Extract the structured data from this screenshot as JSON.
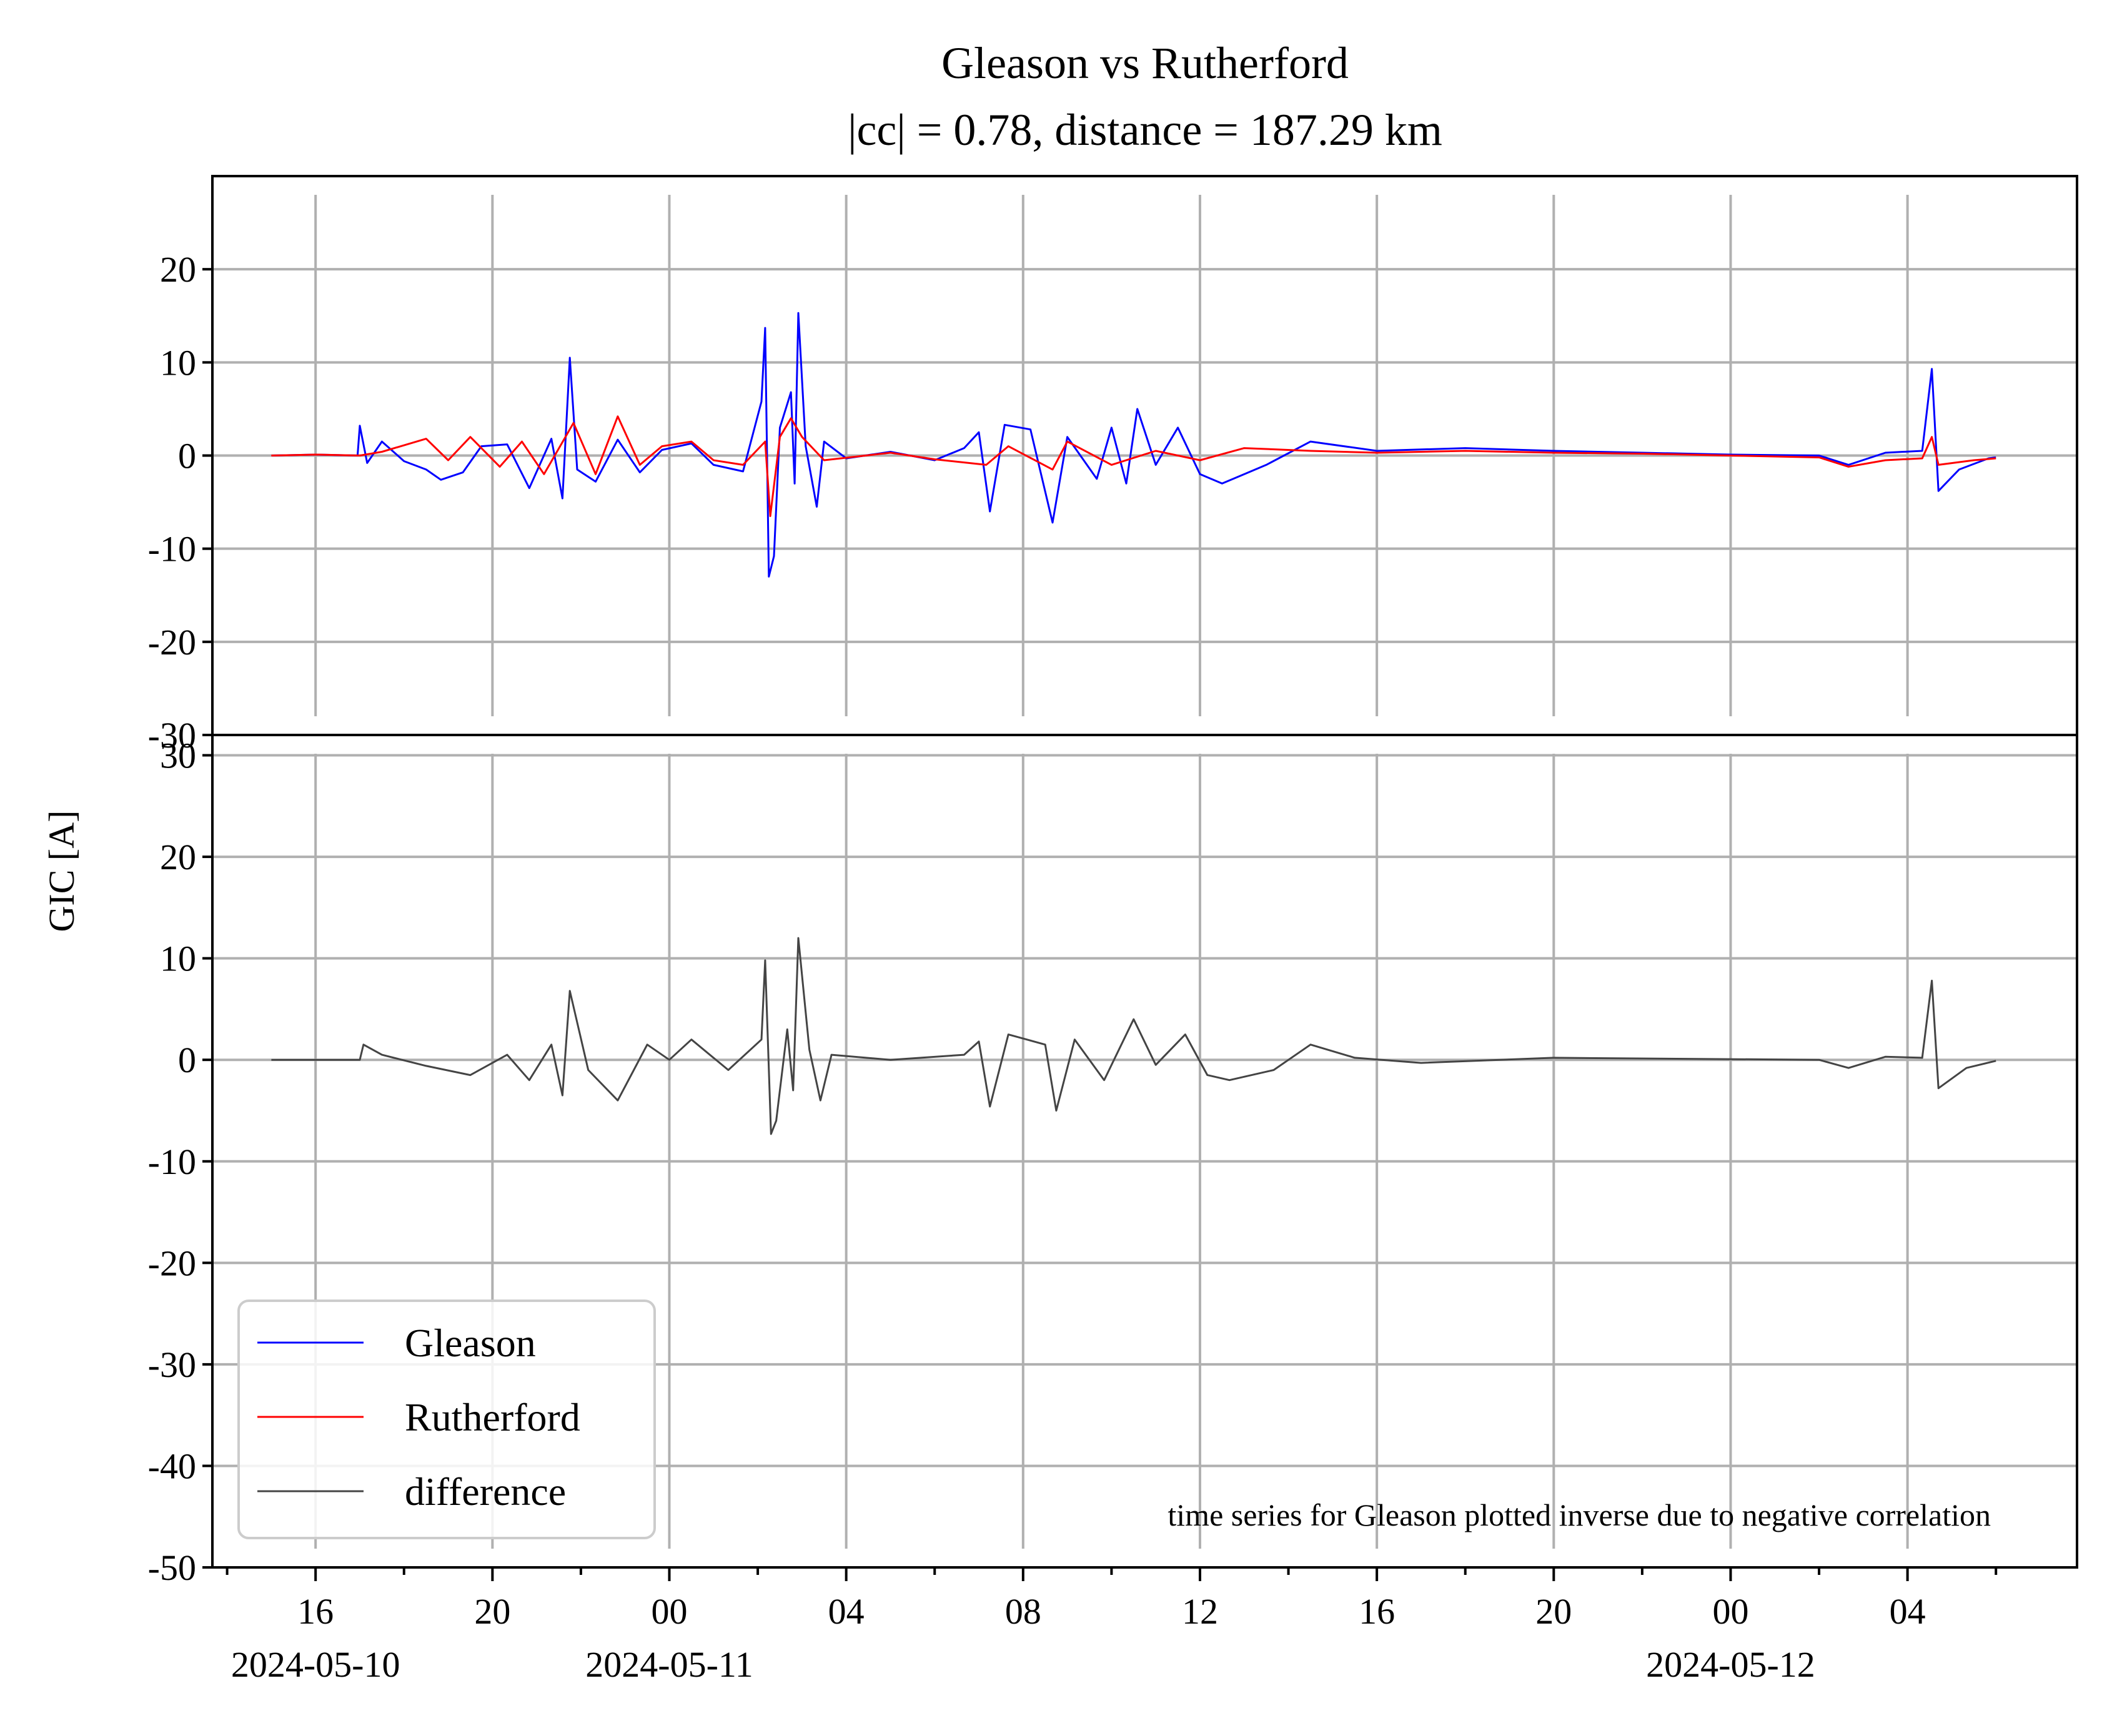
{
  "chart_data": {
    "type": "line",
    "title": "Gleason vs Rutherford",
    "subtitle": "|cc| = 0.78, distance = 187.29 km",
    "ylabel": "GIC [A]",
    "annotation": "time series for Gleason plotted inverse due to negative correlation",
    "x_start": "2024-05-10 13:40",
    "x_end": "2024-05-12 07:50",
    "x_tick_labels": [
      "16",
      "20",
      "00",
      "04",
      "08",
      "12",
      "16",
      "20",
      "00",
      "04"
    ],
    "x_date_labels": [
      "2024-05-10",
      "2024-05-11",
      "2024-05-12"
    ],
    "top_panel": {
      "ylim": [
        -30,
        30
      ],
      "y_tick_labels": [
        "-30",
        "-20",
        "-10",
        "0",
        "10",
        "20"
      ],
      "series": [
        {
          "name": "Gleason",
          "color": "#0000ff",
          "points": [
            [
              "2024-05-10 15:00",
              0.0
            ],
            [
              "2024-05-10 16:00",
              0.1
            ],
            [
              "2024-05-10 16:57",
              0.0
            ],
            [
              "2024-05-10 17:00",
              3.2
            ],
            [
              "2024-05-10 17:10",
              -0.8
            ],
            [
              "2024-05-10 17:30",
              1.5
            ],
            [
              "2024-05-10 18:00",
              -0.6
            ],
            [
              "2024-05-10 18:30",
              -1.5
            ],
            [
              "2024-05-10 18:50",
              -2.6
            ],
            [
              "2024-05-10 19:20",
              -1.8
            ],
            [
              "2024-05-10 19:45",
              1.0
            ],
            [
              "2024-05-10 20:20",
              1.2
            ],
            [
              "2024-05-10 20:50",
              -3.5
            ],
            [
              "2024-05-10 21:20",
              1.8
            ],
            [
              "2024-05-10 21:35",
              -4.6
            ],
            [
              "2024-05-10 21:45",
              10.5
            ],
            [
              "2024-05-10 21:55",
              -1.5
            ],
            [
              "2024-05-10 22:20",
              -2.8
            ],
            [
              "2024-05-10 22:50",
              1.7
            ],
            [
              "2024-05-10 23:20",
              -1.8
            ],
            [
              "2024-05-10 23:50",
              0.6
            ],
            [
              "2024-05-11 00:30",
              1.3
            ],
            [
              "2024-05-11 01:00",
              -1.0
            ],
            [
              "2024-05-11 01:40",
              -1.7
            ],
            [
              "2024-05-11 02:05",
              5.8
            ],
            [
              "2024-05-11 02:10",
              13.7
            ],
            [
              "2024-05-11 02:15",
              -13.0
            ],
            [
              "2024-05-11 02:22",
              -10.8
            ],
            [
              "2024-05-11 02:30",
              3.0
            ],
            [
              "2024-05-11 02:45",
              6.8
            ],
            [
              "2024-05-11 02:50",
              -3.0
            ],
            [
              "2024-05-11 02:55",
              15.3
            ],
            [
              "2024-05-11 03:05",
              1.0
            ],
            [
              "2024-05-11 03:20",
              -5.5
            ],
            [
              "2024-05-11 03:30",
              1.5
            ],
            [
              "2024-05-11 04:00",
              -0.3
            ],
            [
              "2024-05-11 05:00",
              0.4
            ],
            [
              "2024-05-11 06:00",
              -0.5
            ],
            [
              "2024-05-11 06:40",
              0.8
            ],
            [
              "2024-05-11 07:00",
              2.5
            ],
            [
              "2024-05-11 07:15",
              -6.0
            ],
            [
              "2024-05-11 07:35",
              3.3
            ],
            [
              "2024-05-11 08:10",
              2.8
            ],
            [
              "2024-05-11 08:40",
              -7.2
            ],
            [
              "2024-05-11 09:00",
              2.0
            ],
            [
              "2024-05-11 09:40",
              -2.5
            ],
            [
              "2024-05-11 10:00",
              3.0
            ],
            [
              "2024-05-11 10:20",
              -3.0
            ],
            [
              "2024-05-11 10:35",
              5.0
            ],
            [
              "2024-05-11 11:00",
              -1.0
            ],
            [
              "2024-05-11 11:30",
              3.0
            ],
            [
              "2024-05-11 12:00",
              -2.0
            ],
            [
              "2024-05-11 12:30",
              -3.0
            ],
            [
              "2024-05-11 13:30",
              -1.0
            ],
            [
              "2024-05-11 14:30",
              1.5
            ],
            [
              "2024-05-11 16:00",
              0.5
            ],
            [
              "2024-05-11 18:00",
              0.8
            ],
            [
              "2024-05-11 20:00",
              0.5
            ],
            [
              "2024-05-11 22:00",
              0.3
            ],
            [
              "2024-05-12 00:00",
              0.1
            ],
            [
              "2024-05-12 02:00",
              0.0
            ],
            [
              "2024-05-12 02:40",
              -1.0
            ],
            [
              "2024-05-12 03:30",
              0.3
            ],
            [
              "2024-05-12 04:20",
              0.5
            ],
            [
              "2024-05-12 04:33",
              9.3
            ],
            [
              "2024-05-12 04:42",
              -3.8
            ],
            [
              "2024-05-12 05:10",
              -1.5
            ],
            [
              "2024-05-12 05:50",
              -0.3
            ],
            [
              "2024-05-12 06:00",
              -0.2
            ]
          ]
        },
        {
          "name": "Rutherford",
          "color": "#ff0000",
          "points": [
            [
              "2024-05-10 15:00",
              0.0
            ],
            [
              "2024-05-10 16:00",
              0.1
            ],
            [
              "2024-05-10 17:00",
              0.0
            ],
            [
              "2024-05-10 17:30",
              0.4
            ],
            [
              "2024-05-10 18:30",
              1.8
            ],
            [
              "2024-05-10 19:00",
              -0.5
            ],
            [
              "2024-05-10 19:30",
              2.0
            ],
            [
              "2024-05-10 20:10",
              -1.2
            ],
            [
              "2024-05-10 20:40",
              1.5
            ],
            [
              "2024-05-10 21:10",
              -2.0
            ],
            [
              "2024-05-10 21:50",
              3.5
            ],
            [
              "2024-05-10 22:20",
              -2.0
            ],
            [
              "2024-05-10 22:50",
              4.2
            ],
            [
              "2024-05-10 23:20",
              -1.0
            ],
            [
              "2024-05-10 23:50",
              1.0
            ],
            [
              "2024-05-11 00:30",
              1.5
            ],
            [
              "2024-05-11 01:00",
              -0.5
            ],
            [
              "2024-05-11 01:40",
              -1.0
            ],
            [
              "2024-05-11 02:10",
              1.5
            ],
            [
              "2024-05-11 02:17",
              -6.5
            ],
            [
              "2024-05-11 02:30",
              2.0
            ],
            [
              "2024-05-11 02:45",
              4.0
            ],
            [
              "2024-05-11 03:00",
              2.0
            ],
            [
              "2024-05-11 03:30",
              -0.5
            ],
            [
              "2024-05-11 05:00",
              0.3
            ],
            [
              "2024-05-11 06:00",
              -0.4
            ],
            [
              "2024-05-11 07:10",
              -1.0
            ],
            [
              "2024-05-11 07:40",
              1.0
            ],
            [
              "2024-05-11 08:40",
              -1.5
            ],
            [
              "2024-05-11 09:00",
              1.5
            ],
            [
              "2024-05-11 10:00",
              -1.0
            ],
            [
              "2024-05-11 11:00",
              0.5
            ],
            [
              "2024-05-11 12:00",
              -0.5
            ],
            [
              "2024-05-11 13:00",
              0.8
            ],
            [
              "2024-05-11 14:30",
              0.5
            ],
            [
              "2024-05-11 16:00",
              0.3
            ],
            [
              "2024-05-11 18:00",
              0.5
            ],
            [
              "2024-05-11 20:00",
              0.3
            ],
            [
              "2024-05-11 22:00",
              0.2
            ],
            [
              "2024-05-12 00:00",
              0.0
            ],
            [
              "2024-05-12 02:00",
              -0.2
            ],
            [
              "2024-05-12 02:40",
              -1.2
            ],
            [
              "2024-05-12 03:30",
              -0.5
            ],
            [
              "2024-05-12 04:20",
              -0.3
            ],
            [
              "2024-05-12 04:33",
              2.0
            ],
            [
              "2024-05-12 04:42",
              -1.0
            ],
            [
              "2024-05-12 05:30",
              -0.5
            ],
            [
              "2024-05-12 06:00",
              -0.3
            ]
          ]
        }
      ]
    },
    "bottom_panel": {
      "ylim": [
        -50,
        32
      ],
      "y_tick_labels": [
        "-50",
        "-40",
        "-30",
        "-20",
        "-10",
        "0",
        "10",
        "20",
        "30"
      ],
      "series": [
        {
          "name": "difference",
          "color": "#444444",
          "points": [
            [
              "2024-05-10 15:00",
              0.0
            ],
            [
              "2024-05-10 17:00",
              0.0
            ],
            [
              "2024-05-10 17:05",
              1.5
            ],
            [
              "2024-05-10 17:30",
              0.5
            ],
            [
              "2024-05-10 18:30",
              -0.6
            ],
            [
              "2024-05-10 19:30",
              -1.5
            ],
            [
              "2024-05-10 20:20",
              0.5
            ],
            [
              "2024-05-10 20:50",
              -2.0
            ],
            [
              "2024-05-10 21:20",
              1.5
            ],
            [
              "2024-05-10 21:35",
              -3.5
            ],
            [
              "2024-05-10 21:45",
              6.8
            ],
            [
              "2024-05-10 22:10",
              -1.0
            ],
            [
              "2024-05-10 22:50",
              -4.0
            ],
            [
              "2024-05-10 23:30",
              1.5
            ],
            [
              "2024-05-11 00:00",
              0.0
            ],
            [
              "2024-05-11 00:30",
              2.0
            ],
            [
              "2024-05-11 01:20",
              -1.0
            ],
            [
              "2024-05-11 02:05",
              2.0
            ],
            [
              "2024-05-11 02:10",
              9.8
            ],
            [
              "2024-05-11 02:18",
              -7.3
            ],
            [
              "2024-05-11 02:25",
              -6.0
            ],
            [
              "2024-05-11 02:40",
              3.0
            ],
            [
              "2024-05-11 02:48",
              -3.0
            ],
            [
              "2024-05-11 02:55",
              12.0
            ],
            [
              "2024-05-11 03:10",
              1.0
            ],
            [
              "2024-05-11 03:25",
              -4.0
            ],
            [
              "2024-05-11 03:40",
              0.5
            ],
            [
              "2024-05-11 05:00",
              0.0
            ],
            [
              "2024-05-11 06:40",
              0.5
            ],
            [
              "2024-05-11 07:00",
              1.8
            ],
            [
              "2024-05-11 07:15",
              -4.6
            ],
            [
              "2024-05-11 07:40",
              2.5
            ],
            [
              "2024-05-11 08:30",
              1.5
            ],
            [
              "2024-05-11 08:45",
              -5.0
            ],
            [
              "2024-05-11 09:10",
              2.0
            ],
            [
              "2024-05-11 09:50",
              -2.0
            ],
            [
              "2024-05-11 10:30",
              4.0
            ],
            [
              "2024-05-11 11:00",
              -0.5
            ],
            [
              "2024-05-11 11:40",
              2.5
            ],
            [
              "2024-05-11 12:10",
              -1.5
            ],
            [
              "2024-05-11 12:40",
              -2.0
            ],
            [
              "2024-05-11 13:40",
              -1.0
            ],
            [
              "2024-05-11 14:30",
              1.5
            ],
            [
              "2024-05-11 15:30",
              0.2
            ],
            [
              "2024-05-11 17:00",
              -0.3
            ],
            [
              "2024-05-11 20:00",
              0.2
            ],
            [
              "2024-05-11 23:00",
              0.1
            ],
            [
              "2024-05-12 02:00",
              0.0
            ],
            [
              "2024-05-12 02:40",
              -0.8
            ],
            [
              "2024-05-12 03:30",
              0.3
            ],
            [
              "2024-05-12 04:20",
              0.2
            ],
            [
              "2024-05-12 04:33",
              7.8
            ],
            [
              "2024-05-12 04:42",
              -2.8
            ],
            [
              "2024-05-12 05:20",
              -0.8
            ],
            [
              "2024-05-12 06:00",
              -0.1
            ]
          ]
        }
      ]
    },
    "legend": {
      "placement": "lower-left",
      "entries": [
        {
          "label": "Gleason",
          "color": "#0000ff"
        },
        {
          "label": "Rutherford",
          "color": "#ff0000"
        },
        {
          "label": "difference",
          "color": "#444444"
        }
      ]
    },
    "grid": true
  }
}
